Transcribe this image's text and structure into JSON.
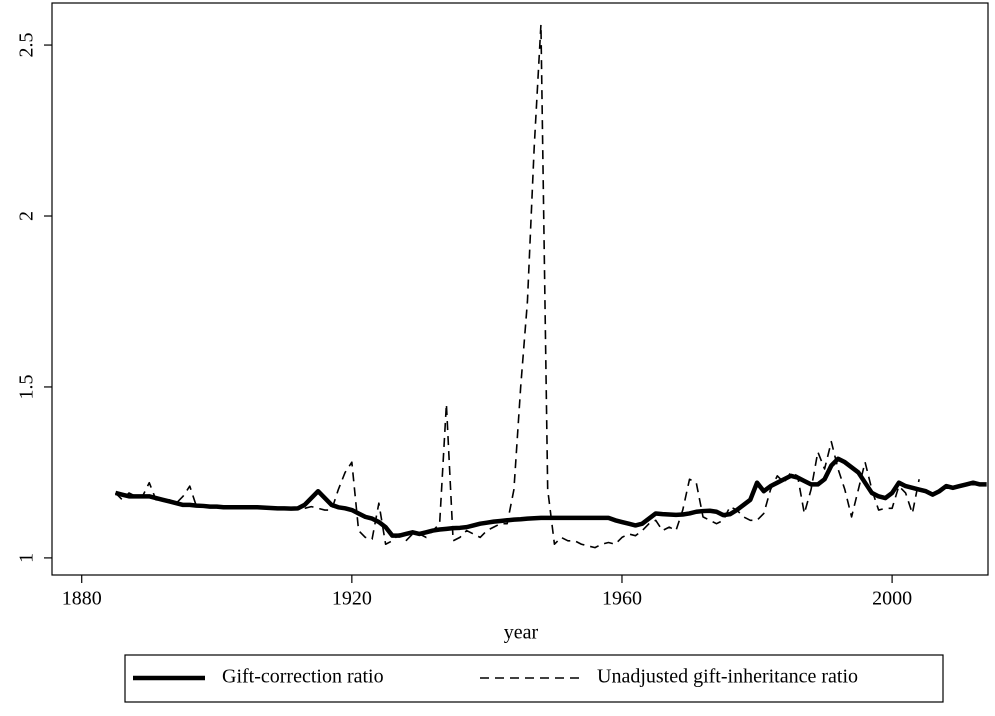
{
  "chart_data": {
    "type": "line",
    "x_label": "year",
    "x": [
      1885,
      1886,
      1887,
      1888,
      1889,
      1890,
      1891,
      1892,
      1893,
      1894,
      1895,
      1896,
      1897,
      1898,
      1899,
      1900,
      1901,
      1902,
      1903,
      1904,
      1905,
      1906,
      1907,
      1908,
      1909,
      1910,
      1911,
      1912,
      1913,
      1914,
      1915,
      1916,
      1917,
      1918,
      1919,
      1920,
      1921,
      1922,
      1923,
      1924,
      1925,
      1926,
      1927,
      1928,
      1929,
      1930,
      1931,
      1932,
      1933,
      1934,
      1935,
      1936,
      1937,
      1938,
      1939,
      1940,
      1941,
      1942,
      1943,
      1944,
      1945,
      1946,
      1947,
      1948,
      1949,
      1950,
      1951,
      1952,
      1953,
      1954,
      1955,
      1956,
      1957,
      1958,
      1959,
      1960,
      1961,
      1962,
      1963,
      1964,
      1965,
      1966,
      1967,
      1968,
      1969,
      1970,
      1971,
      1972,
      1973,
      1974,
      1975,
      1976,
      1977,
      1978,
      1979,
      1980,
      1981,
      1982,
      1983,
      1984,
      1985,
      1986,
      1987,
      1988,
      1989,
      1990,
      1991,
      1992,
      1993,
      1994,
      1995,
      1996,
      1997,
      1998,
      1999,
      2000,
      2001,
      2002,
      2003,
      2004,
      2005,
      2006,
      2007,
      2008,
      2009,
      2010,
      2011,
      2012,
      2013,
      2014
    ],
    "series": [
      {
        "name": "Gift-correction ratio",
        "color": "#000000",
        "style": "solid",
        "values": [
          1.19,
          1.185,
          1.18,
          1.18,
          1.18,
          1.18,
          1.175,
          1.17,
          1.165,
          1.16,
          1.155,
          1.155,
          1.153,
          1.152,
          1.15,
          1.15,
          1.148,
          1.148,
          1.148,
          1.148,
          1.148,
          1.148,
          1.147,
          1.146,
          1.145,
          1.145,
          1.144,
          1.145,
          1.155,
          1.175,
          1.195,
          1.175,
          1.155,
          1.148,
          1.145,
          1.14,
          1.13,
          1.12,
          1.115,
          1.105,
          1.09,
          1.065,
          1.065,
          1.07,
          1.075,
          1.07,
          1.075,
          1.08,
          1.083,
          1.085,
          1.087,
          1.088,
          1.09,
          1.095,
          1.1,
          1.103,
          1.106,
          1.108,
          1.11,
          1.112,
          1.113,
          1.115,
          1.116,
          1.117,
          1.117,
          1.117,
          1.117,
          1.117,
          1.117,
          1.117,
          1.117,
          1.117,
          1.117,
          1.117,
          1.11,
          1.105,
          1.1,
          1.095,
          1.1,
          1.115,
          1.13,
          1.128,
          1.127,
          1.126,
          1.127,
          1.13,
          1.135,
          1.137,
          1.138,
          1.135,
          1.125,
          1.128,
          1.14,
          1.155,
          1.17,
          1.22,
          1.195,
          1.21,
          1.22,
          1.23,
          1.24,
          1.235,
          1.225,
          1.215,
          1.215,
          1.23,
          1.27,
          1.29,
          1.28,
          1.265,
          1.25,
          1.22,
          1.19,
          1.18,
          1.175,
          1.19,
          1.22,
          1.21,
          1.205,
          1.2,
          1.195,
          1.185,
          1.195,
          1.21,
          1.205,
          1.21,
          1.215,
          1.22,
          1.215,
          1.215
        ]
      },
      {
        "name": "Unadjusted gift-inheritance ratio",
        "color": "#000000",
        "style": "dashed",
        "values": [
          1.19,
          1.17,
          1.19,
          1.18,
          1.18,
          1.22,
          1.17,
          1.17,
          1.17,
          1.16,
          1.18,
          1.21,
          1.15,
          1.15,
          1.148,
          1.148,
          1.148,
          1.148,
          1.148,
          1.148,
          1.148,
          1.148,
          1.147,
          1.146,
          1.145,
          1.145,
          1.145,
          1.145,
          1.145,
          1.15,
          1.145,
          1.14,
          1.14,
          1.2,
          1.25,
          1.28,
          1.08,
          1.06,
          1.055,
          1.16,
          1.04,
          1.05,
          1.07,
          1.05,
          1.07,
          1.07,
          1.06,
          1.08,
          1.1,
          1.45,
          1.05,
          1.06,
          1.08,
          1.07,
          1.06,
          1.08,
          1.09,
          1.1,
          1.1,
          1.2,
          1.5,
          1.75,
          2.2,
          2.56,
          1.2,
          1.04,
          1.06,
          1.05,
          1.05,
          1.04,
          1.035,
          1.03,
          1.04,
          1.045,
          1.04,
          1.06,
          1.07,
          1.065,
          1.08,
          1.1,
          1.11,
          1.08,
          1.09,
          1.08,
          1.14,
          1.23,
          1.22,
          1.12,
          1.11,
          1.1,
          1.11,
          1.15,
          1.14,
          1.12,
          1.11,
          1.11,
          1.13,
          1.2,
          1.24,
          1.22,
          1.25,
          1.24,
          1.13,
          1.2,
          1.31,
          1.26,
          1.34,
          1.26,
          1.2,
          1.12,
          1.2,
          1.28,
          1.2,
          1.14,
          1.145,
          1.145,
          1.21,
          1.19,
          1.13,
          1.23,
          null,
          null,
          null,
          null,
          null,
          null,
          null,
          null,
          null,
          null
        ]
      }
    ],
    "xlim": [
      1875.6,
      2014.2
    ],
    "xticks": [
      1880,
      1920,
      1960,
      2000
    ],
    "ylim": [
      0.95,
      2.623
    ],
    "yticks": [
      1,
      1.5,
      2,
      2.5
    ],
    "grid": false,
    "legend": "bottom"
  }
}
